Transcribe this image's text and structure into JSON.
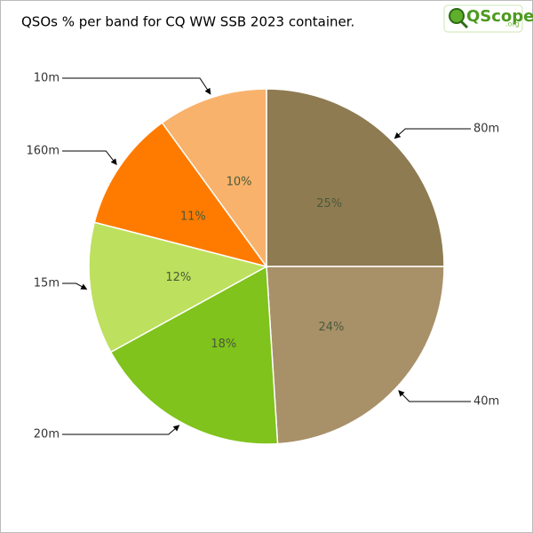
{
  "chart_data": {
    "type": "pie",
    "title": "QSOs % per band for CQ WW SSB 2023 container.",
    "categories": [
      "80m",
      "40m",
      "20m",
      "15m",
      "160m",
      "10m"
    ],
    "values": [
      25,
      24,
      18,
      12,
      11,
      10
    ],
    "value_labels": [
      "25%",
      "24%",
      "18%",
      "12%",
      "11%",
      "10%"
    ],
    "colors": [
      "#8f7b52",
      "#a89068",
      "#7fc31c",
      "#bde05e",
      "#ff7b00",
      "#f9b26b"
    ]
  },
  "logo": {
    "text": "QScope",
    "suffix": ".org"
  }
}
